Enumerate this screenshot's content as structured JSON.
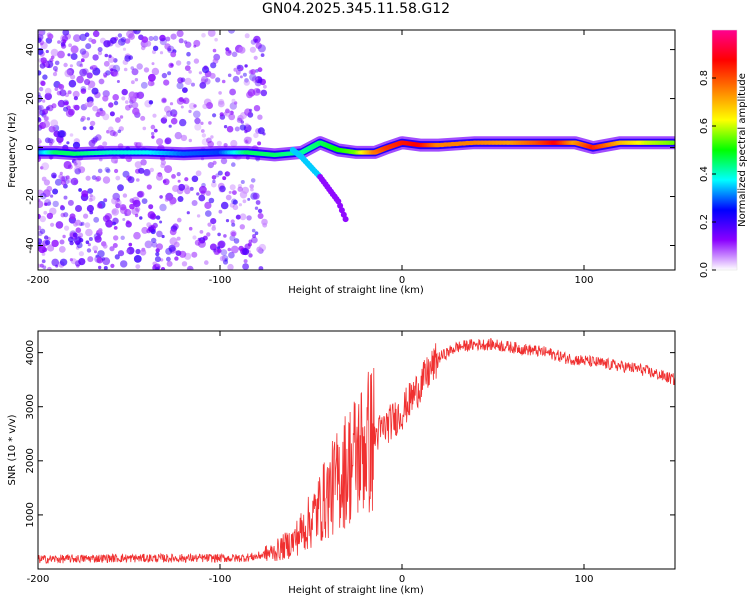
{
  "figure_title": "GN04.2025.345.11.58.G12",
  "chart_data": [
    {
      "type": "heatmap",
      "panel": "top",
      "title": "GN04.2025.345.11.58.G12",
      "xlabel": "Height of straight line (km)",
      "ylabel": "Frequency (Hz)",
      "xlim": [
        -200,
        150
      ],
      "ylim": [
        -50,
        48
      ],
      "xticks": [
        -200,
        -100,
        0,
        100
      ],
      "yticks": [
        -40,
        -20,
        0,
        20,
        40
      ],
      "colorbar": {
        "label": "Normalized spectral amplitude",
        "range": [
          0,
          1
        ],
        "ticks": [
          "0.0",
          "0.2",
          "0.4",
          "0.6",
          "0.8"
        ],
        "colors": [
          "#ffffff",
          "#8a00ff",
          "#0000ff",
          "#00ffff",
          "#00ff00",
          "#ffff00",
          "#ff8000",
          "#ff0000",
          "#ff0090"
        ]
      },
      "ridge": [
        {
          "x": -200,
          "f": -2,
          "amp": 0.3
        },
        {
          "x": -190,
          "f": -2,
          "amp": 0.45
        },
        {
          "x": -180,
          "f": -2.5,
          "amp": 0.45
        },
        {
          "x": -160,
          "f": -2,
          "amp": 0.4
        },
        {
          "x": -140,
          "f": -2,
          "amp": 0.38
        },
        {
          "x": -120,
          "f": -2.5,
          "amp": 0.3
        },
        {
          "x": -100,
          "f": -2,
          "amp": 0.28
        },
        {
          "x": -85,
          "f": -2,
          "amp": 0.45
        },
        {
          "x": -70,
          "f": -3,
          "amp": 0.45
        },
        {
          "x": -55,
          "f": -2,
          "amp": 0.42
        },
        {
          "x": -45,
          "f": 2,
          "amp": 0.45
        },
        {
          "x": -35,
          "f": -1,
          "amp": 0.5
        },
        {
          "x": -25,
          "f": -2,
          "amp": 0.55
        },
        {
          "x": -15,
          "f": -2,
          "amp": 0.75
        },
        {
          "x": -8,
          "f": 0,
          "amp": 0.82
        },
        {
          "x": 0,
          "f": 2,
          "amp": 0.85
        },
        {
          "x": 10,
          "f": 1,
          "amp": 0.88
        },
        {
          "x": 20,
          "f": 1,
          "amp": 0.75
        },
        {
          "x": 40,
          "f": 2,
          "amp": 0.75
        },
        {
          "x": 60,
          "f": 2,
          "amp": 0.72
        },
        {
          "x": 75,
          "f": 2,
          "amp": 0.8
        },
        {
          "x": 85,
          "f": 2,
          "amp": 0.88
        },
        {
          "x": 95,
          "f": 2,
          "amp": 0.72
        },
        {
          "x": 105,
          "f": 0,
          "amp": 0.85
        },
        {
          "x": 120,
          "f": 2,
          "amp": 0.7
        },
        {
          "x": 135,
          "f": 2,
          "amp": 0.6
        },
        {
          "x": 150,
          "f": 2,
          "amp": 0.55
        }
      ],
      "secondary_track": [
        {
          "x": -60,
          "f": -1
        },
        {
          "x": -55,
          "f": -4
        },
        {
          "x": -50,
          "f": -8
        },
        {
          "x": -45,
          "f": -12
        },
        {
          "x": -40,
          "f": -17
        },
        {
          "x": -35,
          "f": -22
        },
        {
          "x": -30,
          "f": -31
        }
      ],
      "noise_region_x": [
        -200,
        -75
      ]
    },
    {
      "type": "line",
      "panel": "bottom",
      "xlabel": "Height of straight line (km)",
      "ylabel": "SNR (10 * v/v)",
      "xlim": [
        -200,
        150
      ],
      "ylim": [
        0,
        4400
      ],
      "xticks": [
        -200,
        -100,
        0,
        100
      ],
      "yticks": [
        1000,
        2000,
        3000,
        4000
      ],
      "color": "#f03030",
      "series": [
        {
          "name": "SNR",
          "x": [
            -200,
            -180,
            -160,
            -140,
            -120,
            -100,
            -90,
            -80,
            -70,
            -60,
            -50,
            -40,
            -30,
            -20,
            -10,
            0,
            10,
            20,
            30,
            40,
            50,
            60,
            70,
            80,
            90,
            100,
            110,
            120,
            130,
            140,
            150
          ],
          "y": [
            180,
            190,
            200,
            200,
            200,
            200,
            200,
            230,
            320,
            500,
            900,
            1400,
            1900,
            2300,
            2600,
            2900,
            3400,
            3900,
            4100,
            4150,
            4150,
            4100,
            4050,
            4000,
            3900,
            3850,
            3800,
            3750,
            3700,
            3600,
            3500
          ]
        }
      ]
    }
  ]
}
